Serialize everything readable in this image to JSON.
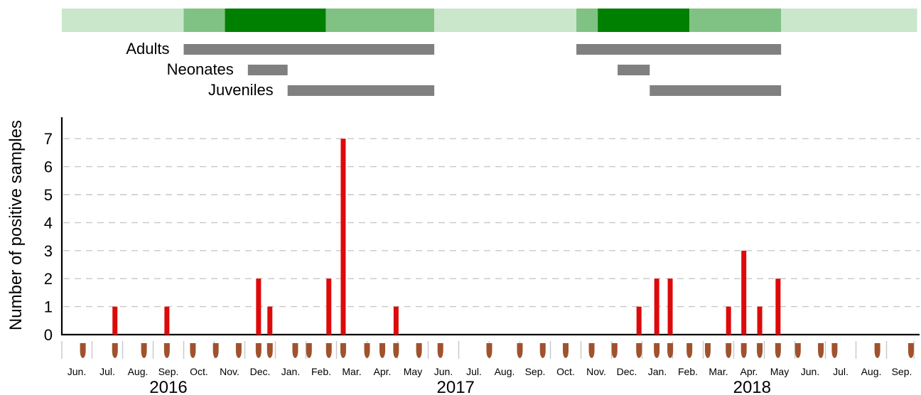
{
  "chart_data": {
    "type": "bar",
    "ylabel": "Number of positive samples",
    "ylim": [
      0,
      7
    ],
    "yticks": [
      0,
      1,
      2,
      3,
      4,
      5,
      6,
      7
    ],
    "grid": "horizontal-dashed",
    "months": [
      "Jun.",
      "Jul.",
      "Aug.",
      "Sep.",
      "Oct.",
      "Nov.",
      "Dec.",
      "Jan.",
      "Feb.",
      "Mar.",
      "Apr.",
      "May",
      "Jun.",
      "Jul.",
      "Aug.",
      "Sep.",
      "Oct.",
      "Nov.",
      "Dec.",
      "Jan.",
      "Feb.",
      "Mar.",
      "Apr.",
      "May",
      "Jun.",
      "Jul.",
      "Aug.",
      "Sep."
    ],
    "years": [
      {
        "label": "2016",
        "month_index": 3.0
      },
      {
        "label": "2017",
        "month_index": 12.4
      },
      {
        "label": "2018",
        "month_index": 22.1
      }
    ],
    "bars": [
      {
        "month_index": 1.25,
        "value": 1
      },
      {
        "month_index": 2.95,
        "value": 1
      },
      {
        "month_index": 5.95,
        "value": 2
      },
      {
        "month_index": 6.32,
        "value": 1
      },
      {
        "month_index": 8.25,
        "value": 2
      },
      {
        "month_index": 8.72,
        "value": 7
      },
      {
        "month_index": 10.45,
        "value": 1
      },
      {
        "month_index": 18.4,
        "value": 1
      },
      {
        "month_index": 18.98,
        "value": 2
      },
      {
        "month_index": 19.42,
        "value": 2
      },
      {
        "month_index": 21.33,
        "value": 1
      },
      {
        "month_index": 21.83,
        "value": 3
      },
      {
        "month_index": 22.35,
        "value": 1
      },
      {
        "month_index": 22.95,
        "value": 2
      }
    ],
    "sampling_events": [
      0.2,
      1.25,
      2.2,
      2.95,
      3.8,
      4.55,
      5.3,
      5.95,
      6.32,
      7.15,
      7.6,
      8.25,
      8.72,
      9.5,
      10.0,
      10.45,
      11.2,
      11.9,
      13.5,
      14.5,
      15.25,
      16.0,
      16.85,
      17.6,
      18.4,
      18.98,
      19.42,
      20.05,
      20.65,
      21.33,
      21.83,
      22.35,
      22.95,
      23.6,
      24.35,
      24.8,
      26.2,
      27.3
    ],
    "season_band": [
      {
        "start": -0.5,
        "end": 3.5,
        "level": "light"
      },
      {
        "start": 3.5,
        "end": 4.85,
        "level": "medium"
      },
      {
        "start": 4.85,
        "end": 8.15,
        "level": "dark"
      },
      {
        "start": 8.15,
        "end": 11.7,
        "level": "medium"
      },
      {
        "start": 11.7,
        "end": 16.35,
        "level": "light"
      },
      {
        "start": 16.35,
        "end": 17.05,
        "level": "medium"
      },
      {
        "start": 17.05,
        "end": 20.05,
        "level": "dark"
      },
      {
        "start": 20.05,
        "end": 23.05,
        "level": "medium"
      },
      {
        "start": 23.05,
        "end": 27.5,
        "level": "light"
      }
    ],
    "life_stages": [
      {
        "label": "Adults",
        "periods": [
          [
            3.5,
            11.7
          ],
          [
            16.35,
            23.05
          ]
        ]
      },
      {
        "label": "Neonates",
        "periods": [
          [
            5.6,
            6.9
          ],
          [
            17.7,
            18.75
          ]
        ]
      },
      {
        "label": "Juveniles",
        "periods": [
          [
            6.9,
            11.7
          ],
          [
            18.75,
            23.05
          ]
        ]
      }
    ],
    "colors": {
      "bar": "#dd0a0a",
      "band_light": "#cae6cb",
      "band_medium": "#80c283",
      "band_dark": "#008000",
      "stage_bar": "#808080",
      "grid": "#c8c8c8",
      "sample_marker": "#a0522d",
      "month_divider": "#c8c8c8"
    }
  }
}
